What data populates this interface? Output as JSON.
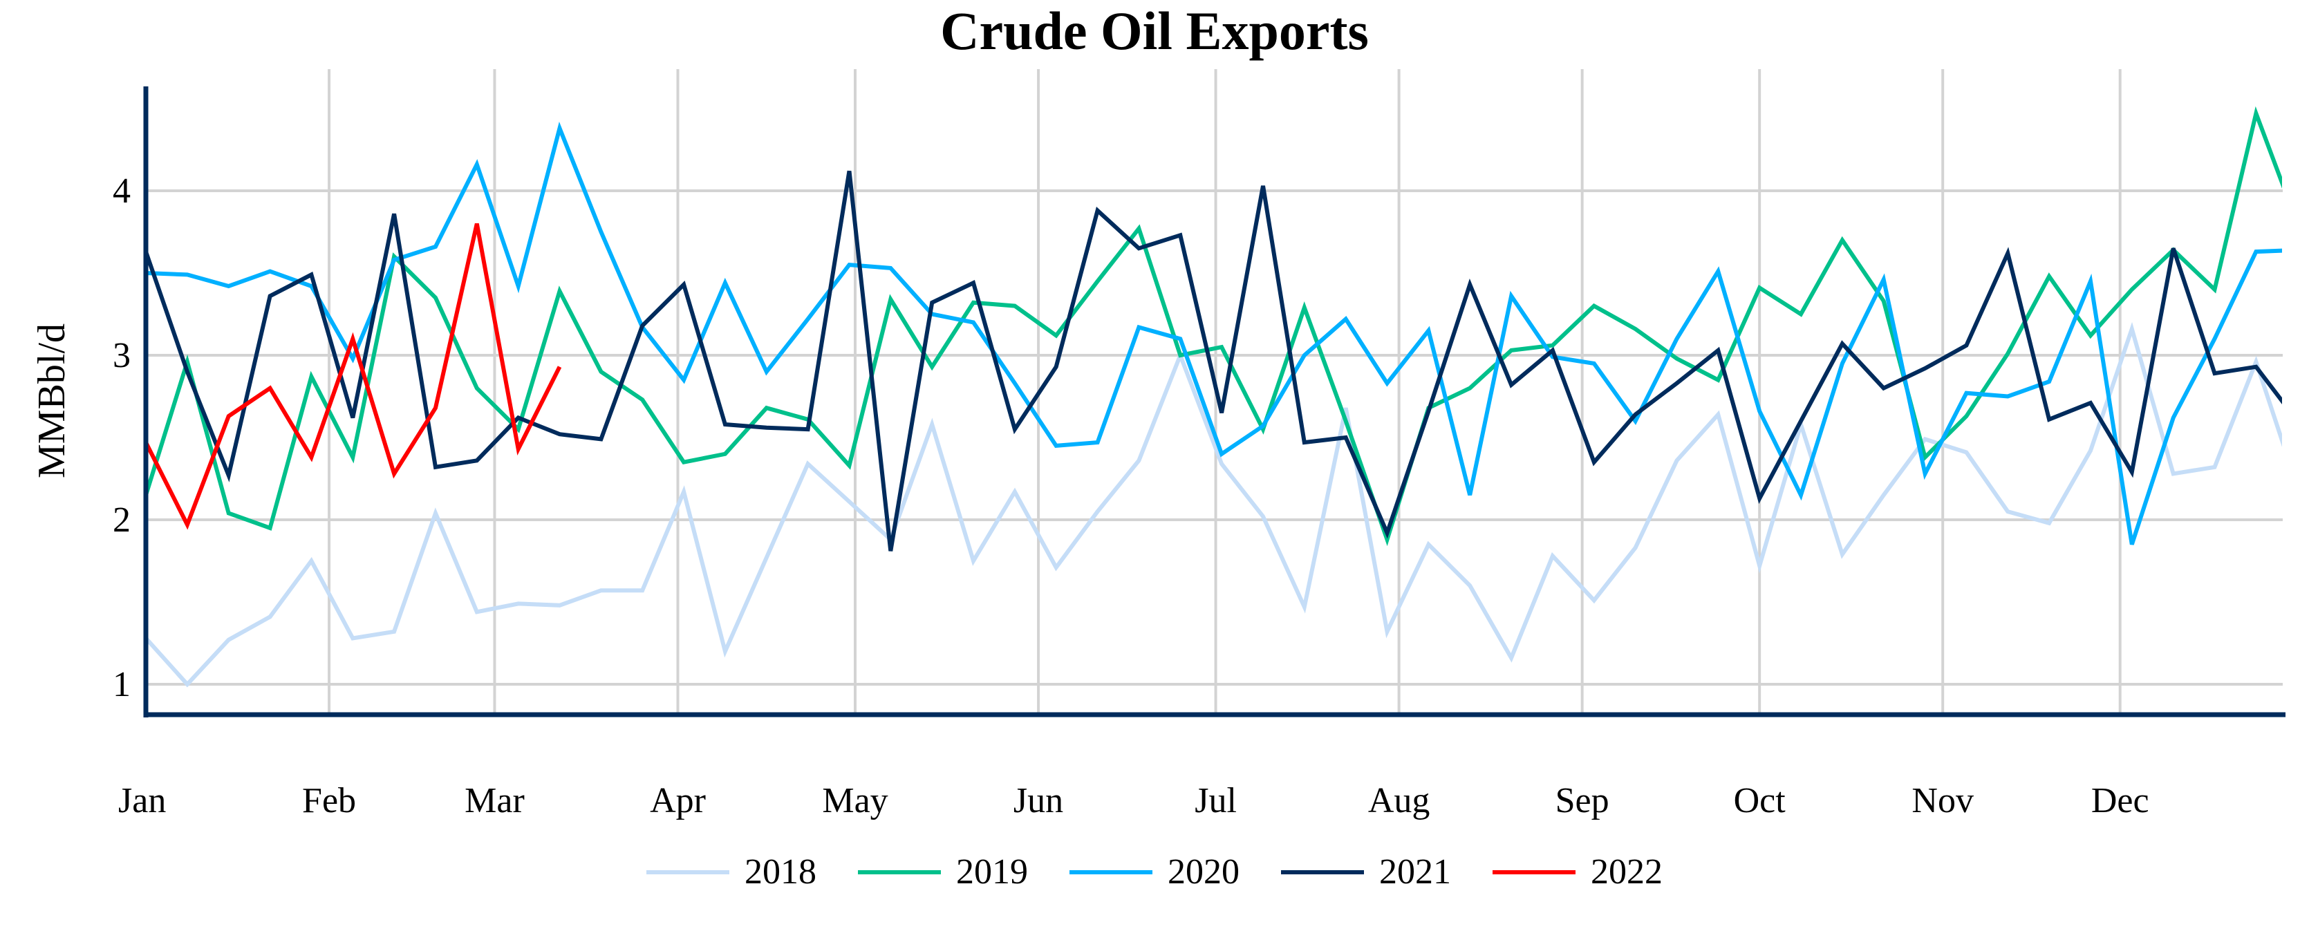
{
  "chart_data": {
    "type": "line",
    "title": "Crude Oil Exports",
    "xlabel": "",
    "ylabel": "MMBbl/d",
    "x_unit": "week of year (weekly data, week 0 = first week of January)",
    "xlim": [
      0,
      51.7
    ],
    "ylim": [
      0.82,
      4.63
    ],
    "yticks": [
      1,
      2,
      3,
      4
    ],
    "xtick_labels": [
      "Jan",
      "Feb",
      "Mar",
      "Apr",
      "May",
      "Jun",
      "Jul",
      "Aug",
      "Sep",
      "Oct",
      "Nov",
      "Dec"
    ],
    "xtick_days": [
      0,
      31,
      59,
      90,
      120,
      151,
      181,
      212,
      243,
      273,
      304,
      334
    ],
    "grid": true,
    "legend_position": "bottom-center",
    "series": [
      {
        "name": "2018",
        "color": "#c5ddf7",
        "values": [
          1.28,
          1.0,
          1.27,
          1.41,
          1.75,
          1.28,
          1.32,
          2.04,
          1.44,
          1.49,
          1.48,
          1.57,
          1.57,
          2.17,
          1.2,
          1.77,
          2.34,
          2.11,
          1.88,
          2.58,
          1.75,
          2.17,
          1.71,
          2.05,
          2.36,
          3.0,
          2.34,
          2.02,
          1.47,
          2.68,
          1.32,
          1.85,
          1.6,
          1.16,
          1.78,
          1.51,
          1.83,
          2.36,
          2.64,
          1.72,
          2.58,
          1.79,
          2.15,
          2.49,
          2.41,
          2.05,
          1.98,
          2.42,
          3.16,
          2.28,
          2.32,
          2.96,
          2.2
        ]
      },
      {
        "name": "2019",
        "color": "#00c08b",
        "values": [
          2.15,
          2.96,
          2.04,
          1.95,
          2.87,
          2.38,
          3.6,
          3.35,
          2.8,
          2.55,
          3.39,
          2.9,
          2.73,
          2.35,
          2.4,
          2.68,
          2.61,
          2.33,
          3.34,
          2.93,
          3.32,
          3.3,
          3.12,
          3.45,
          3.77,
          3.0,
          3.05,
          2.55,
          3.29,
          2.6,
          1.88,
          2.68,
          2.8,
          3.03,
          3.06,
          3.3,
          3.16,
          2.98,
          2.85,
          3.41,
          3.25,
          3.7,
          3.33,
          2.38,
          2.63,
          3.01,
          3.48,
          3.12,
          3.4,
          3.64,
          3.4,
          4.47,
          3.8
        ]
      },
      {
        "name": "2020",
        "color": "#00b0ff",
        "values": [
          3.5,
          3.49,
          3.42,
          3.51,
          3.42,
          2.98,
          3.58,
          3.66,
          4.16,
          3.42,
          4.38,
          3.75,
          3.17,
          2.85,
          3.44,
          2.9,
          3.22,
          3.55,
          3.53,
          3.25,
          3.2,
          2.83,
          2.45,
          2.47,
          3.17,
          3.1,
          2.4,
          2.57,
          3.0,
          3.22,
          2.83,
          3.15,
          2.15,
          3.36,
          2.99,
          2.95,
          2.6,
          3.1,
          3.51,
          2.66,
          2.15,
          2.95,
          3.46,
          2.28,
          2.77,
          2.75,
          2.84,
          3.45,
          1.85,
          2.62,
          3.1,
          3.63,
          3.64
        ]
      },
      {
        "name": "2021",
        "color": "#002b5c",
        "values": [
          3.63,
          2.9,
          2.27,
          3.36,
          3.49,
          2.62,
          3.86,
          2.32,
          2.36,
          2.62,
          2.52,
          2.49,
          3.18,
          3.43,
          2.58,
          2.56,
          2.55,
          4.12,
          1.81,
          3.32,
          3.44,
          2.55,
          2.93,
          3.88,
          3.65,
          3.73,
          2.65,
          4.03,
          2.47,
          2.5,
          1.92,
          2.66,
          3.43,
          2.82,
          3.03,
          2.35,
          2.64,
          2.83,
          3.03,
          2.13,
          2.6,
          3.07,
          2.8,
          2.92,
          3.06,
          3.62,
          2.61,
          2.71,
          2.29,
          3.65,
          2.89,
          2.93,
          2.6
        ]
      },
      {
        "name": "2022",
        "color": "#ff0000",
        "values": [
          2.47,
          1.97,
          2.63,
          2.8,
          2.38,
          3.1,
          2.28,
          2.68,
          3.8,
          2.43,
          2.93
        ]
      }
    ]
  }
}
